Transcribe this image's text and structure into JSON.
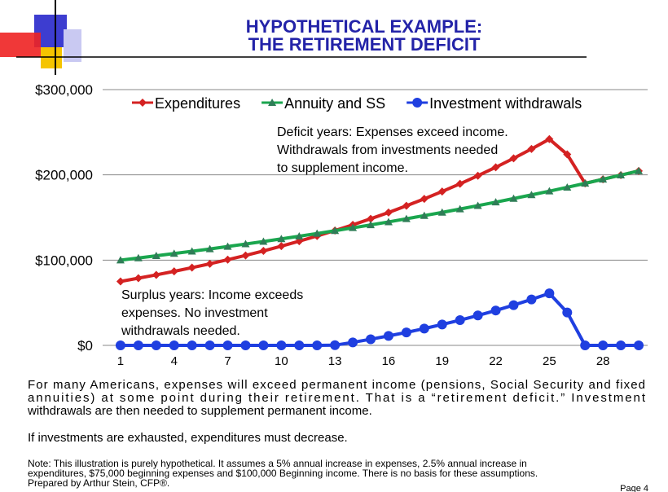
{
  "slide": {
    "title_lines": [
      "HYPOTHETICAL  EXAMPLE:",
      "THE RETIREMENT DEFICIT"
    ],
    "paragraph_lines": [
      "For many Americans, expenses will exceed permanent income (pensions, Social Security and fixed",
      "annuities) at some point during their retirement. That is a “retirement deficit.” Investment",
      "withdrawals are then needed to supplement permanent income."
    ],
    "conclusion": "If investments are exhausted,  expenditures  must decrease.",
    "note_lines": [
      "Note: This illustration is purely hypothetical. It assumes a 5% annual increase in expenses, 2.5% annual increase in",
      "expenditures, $75,000 beginning expenses and $100,000 Beginning income. There is no basis for these assumptions.",
      "Prepared by Arthur Stein, CFP®."
    ],
    "page": "Page 4"
  },
  "chart_data": {
    "type": "line",
    "x": [
      1,
      2,
      3,
      4,
      5,
      6,
      7,
      8,
      9,
      10,
      11,
      12,
      13,
      14,
      15,
      16,
      17,
      18,
      19,
      20,
      21,
      22,
      23,
      24,
      25,
      26,
      27,
      28,
      29,
      30
    ],
    "series": [
      {
        "name": "Expenditures",
        "color": "#d42222",
        "marker": "diamond",
        "values": [
          75000,
          78800,
          82700,
          86800,
          91200,
          95700,
          100500,
          105500,
          110800,
          116400,
          122200,
          128300,
          134700,
          141400,
          148500,
          155900,
          163700,
          171900,
          180500,
          189500,
          199000,
          208900,
          219400,
          230400,
          241900,
          224000,
          190000,
          194800,
          199700,
          204600
        ]
      },
      {
        "name": "Annuity and SS",
        "color": "#1aa64e",
        "marker": "triangle",
        "values": [
          100000,
          102500,
          105100,
          107700,
          110400,
          113100,
          116000,
          118900,
          121800,
          124900,
          128000,
          131200,
          134500,
          137900,
          141300,
          144800,
          148500,
          152200,
          156000,
          159900,
          163900,
          168000,
          172200,
          176500,
          180900,
          185400,
          190000,
          194800,
          199700,
          204600
        ]
      },
      {
        "name": "Investment withdrawals",
        "color": "#1f3fe0",
        "marker": "circle",
        "values": [
          0,
          0,
          0,
          0,
          0,
          0,
          0,
          0,
          0,
          0,
          0,
          0,
          200,
          3500,
          7200,
          11100,
          15200,
          19700,
          24500,
          29600,
          35100,
          40900,
          47200,
          53900,
          61000,
          38600,
          0,
          0,
          0,
          0
        ]
      }
    ],
    "xlim": [
      0,
      30.5
    ],
    "xticks": [
      1,
      4,
      7,
      10,
      13,
      16,
      19,
      22,
      25,
      28
    ],
    "ylim": [
      0,
      300000
    ],
    "yticks": [
      {
        "value": 0,
        "label": "$0"
      },
      {
        "value": 100000,
        "label": "$100,000"
      },
      {
        "value": 200000,
        "label": "$200,000"
      },
      {
        "value": 300000,
        "label": "$300,000"
      }
    ],
    "grid": true,
    "legend": "top",
    "annotations": [
      [
        "Deficit years: Expenses  exceed  income.",
        "Withdrawals from investments needed",
        "to supplement  income."
      ],
      [
        "Surplus years: Income  exceeds",
        "expenses.  No investment",
        "withdrawals needed."
      ]
    ]
  }
}
